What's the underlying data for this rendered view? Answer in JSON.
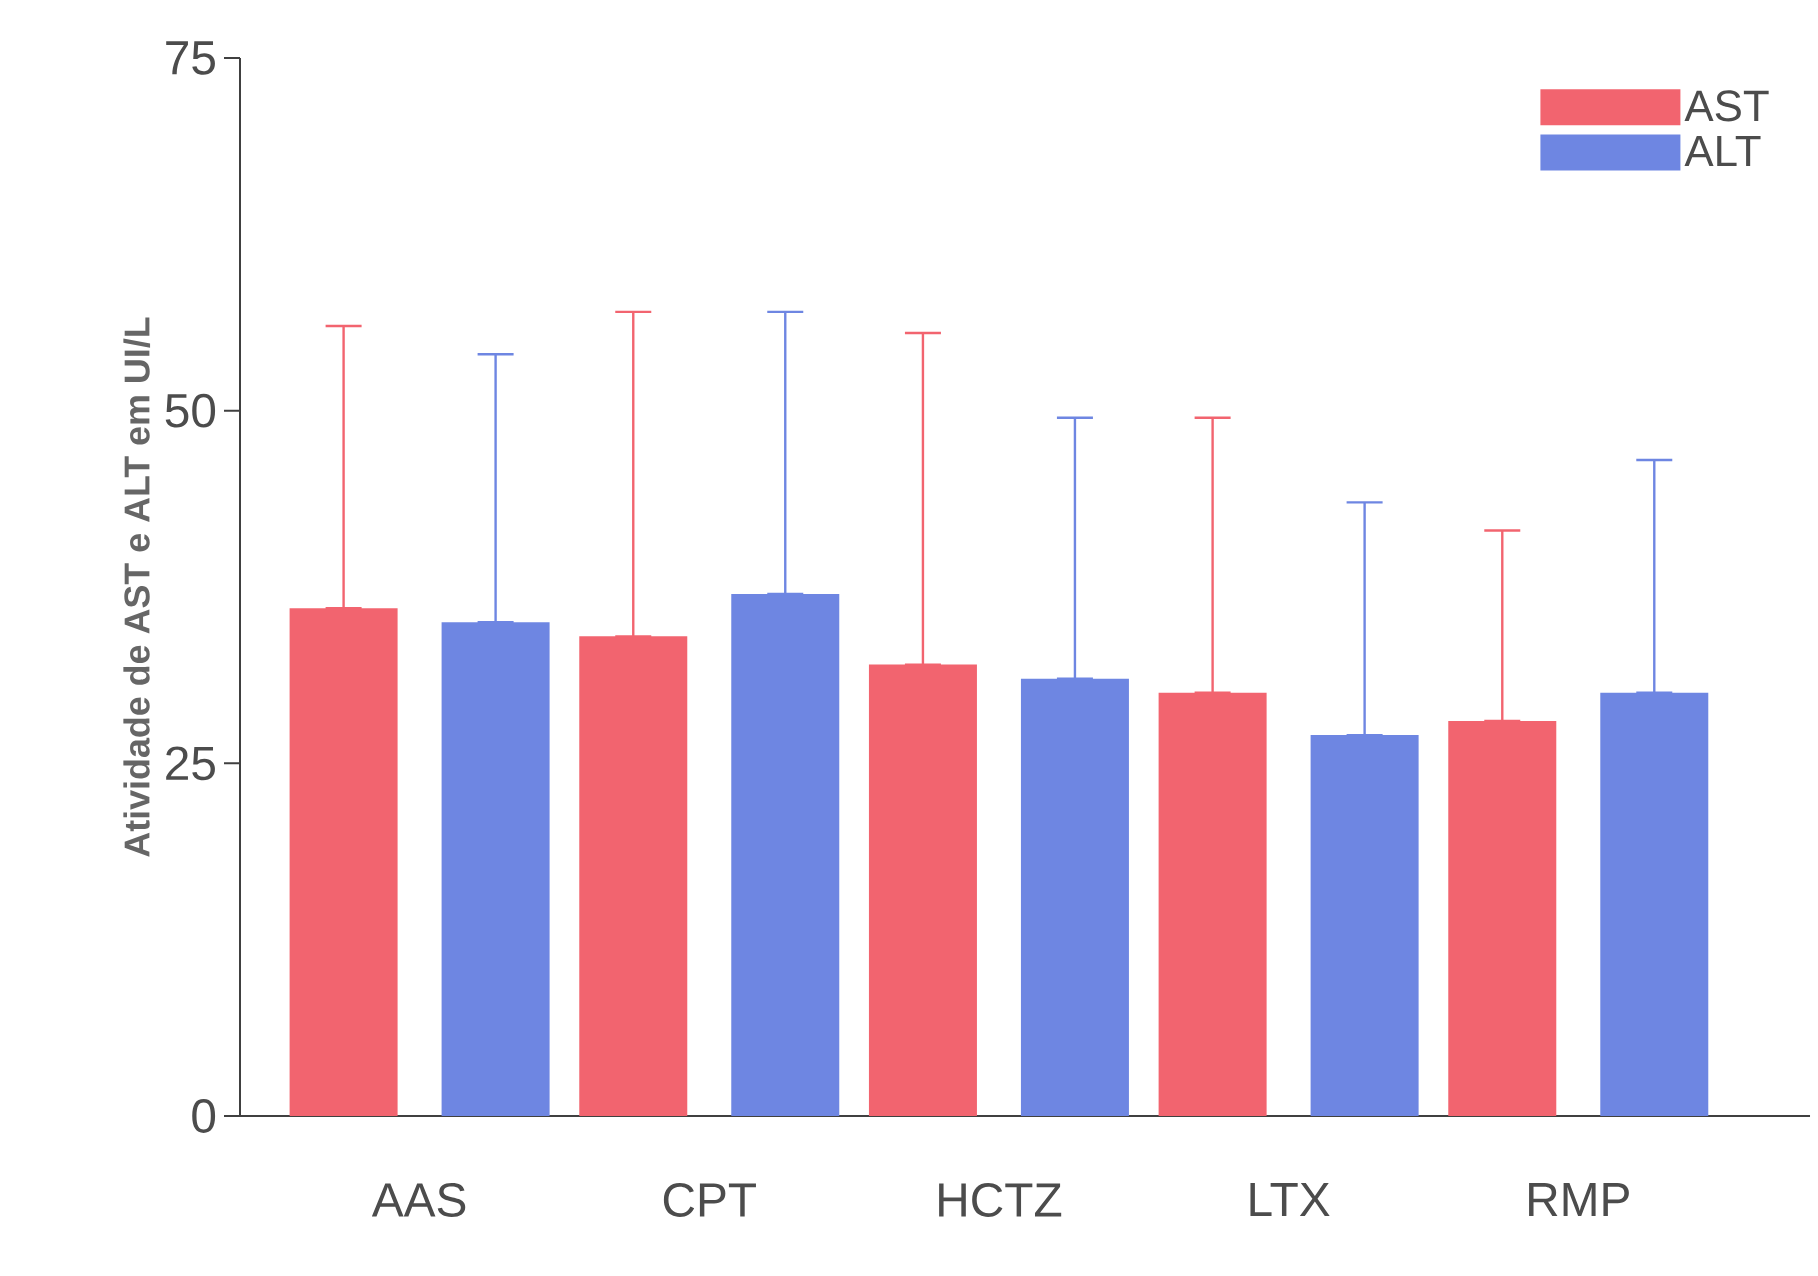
{
  "chart_data": {
    "type": "bar",
    "ylabel": "Atividade de AST e ALT em UI/L",
    "categories": [
      "AAS",
      "CPT",
      "HCTZ",
      "LTX",
      "RMP"
    ],
    "series": [
      {
        "name": "AST",
        "color": "#f2646f",
        "values": [
          36,
          34,
          32,
          30,
          28
        ],
        "errors": [
          [
            36,
            56
          ],
          [
            34,
            57
          ],
          [
            32,
            55.5
          ],
          [
            30,
            49.5
          ],
          [
            28,
            41.5
          ]
        ]
      },
      {
        "name": "ALT",
        "color": "#6e86e2",
        "values": [
          35,
          37,
          31,
          27,
          30
        ],
        "errors": [
          [
            35,
            54
          ],
          [
            37,
            57
          ],
          [
            31,
            49.5
          ],
          [
            27,
            43.5
          ],
          [
            30,
            46.5
          ]
        ]
      }
    ],
    "ylim": [
      0,
      75
    ],
    "yticks": [
      0,
      25,
      50,
      75
    ],
    "grid": false,
    "legend": "top right"
  }
}
